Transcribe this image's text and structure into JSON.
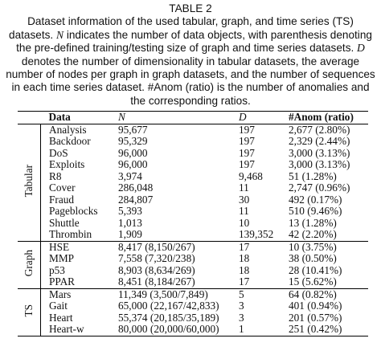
{
  "caption": {
    "title": "TABLE 2",
    "segments": [
      "Dataset information of the used tabular, graph, and time series (TS) datasets. ",
      "N",
      " indicates the number of data objects, with parenthesis denoting the pre-defined training/testing size of graph and time series datasets. ",
      "D",
      " denotes the number of dimensionality in tabular datasets, the average number of nodes per graph in graph datasets, and the number of sequences in each time series dataset. #Anom (ratio) is the number of anomalies and the corresponding ratios."
    ]
  },
  "table": {
    "headers": [
      "Data",
      "N",
      "D",
      "#Anom (ratio)"
    ],
    "groups": [
      {
        "name": "Tabular",
        "rows": [
          [
            "Analysis",
            "95,677",
            "197",
            "2,677 (2.80%)"
          ],
          [
            "Backdoor",
            "95,329",
            "197",
            "2,329 (2.44%)"
          ],
          [
            "DoS",
            "96,000",
            "197",
            "3,000 (3.13%)"
          ],
          [
            "Exploits",
            "96,000",
            "197",
            "3,000 (3.13%)"
          ],
          [
            "R8",
            "3,974",
            "9,468",
            "51 (1.28%)"
          ],
          [
            "Cover",
            "286,048",
            "11",
            "2,747 (0.96%)"
          ],
          [
            "Fraud",
            "284,807",
            "30",
            "492 (0.17%)"
          ],
          [
            "Pageblocks",
            "5,393",
            "11",
            "510 (9.46%)"
          ],
          [
            "Shuttle",
            "1,013",
            "10",
            "13 (1.28%)"
          ],
          [
            "Thrombin",
            "1,909",
            "139,352",
            "42 (2.20%)"
          ]
        ]
      },
      {
        "name": "Graph",
        "rows": [
          [
            "HSE",
            "8,417 (8,150/267)",
            "17",
            "10 (3.75%)"
          ],
          [
            "MMP",
            "7,558 (7,320/238)",
            "18",
            "38 (0.50%)"
          ],
          [
            "p53",
            "8,903 (8,634/269)",
            "18",
            "28 (10.41%)"
          ],
          [
            "PPAR",
            "8,451 (8,184/267)",
            "17",
            "15 (5.62%)"
          ]
        ]
      },
      {
        "name": "TS",
        "rows": [
          [
            "Mars",
            "11,349 (3,500/7,849)",
            "5",
            "64 (0.82%)"
          ],
          [
            "Gait",
            "65,000 (22,167/42,833)",
            "3",
            "401 (0.94%)"
          ],
          [
            "Heart",
            "55,374 (20,185/35,189)",
            "3",
            "201 (0.57%)"
          ],
          [
            "Heart-w",
            "80,000 (20,000/60,000)",
            "1",
            "251 (0.42%)"
          ]
        ]
      }
    ]
  }
}
